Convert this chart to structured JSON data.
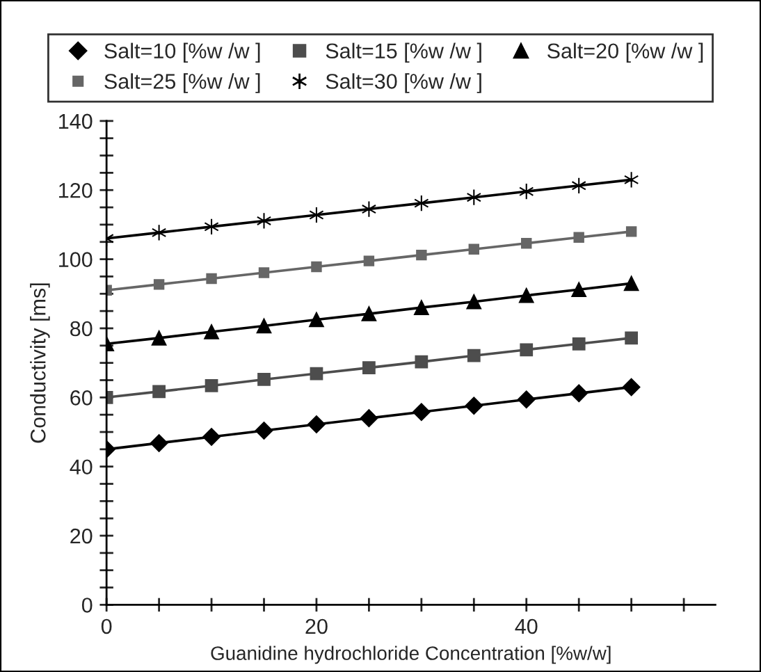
{
  "chart_data": {
    "type": "line",
    "xlabel": "Guanidine hydrochloride Concentration [%w/w]",
    "ylabel": "Conductivity [ms]",
    "x": [
      0,
      5,
      10,
      15,
      20,
      25,
      30,
      35,
      40,
      45,
      50
    ],
    "series": [
      {
        "name": "Salt=10 [%w /w ]",
        "color": "#000000",
        "marker": "diamond",
        "values": [
          45,
          46.8,
          48.6,
          50.4,
          52.2,
          54,
          55.8,
          57.6,
          59.4,
          61.2,
          63
        ]
      },
      {
        "name": "Salt=15 [%w /w ]",
        "color": "#4d4d4d",
        "marker": "square",
        "values": [
          60,
          61.7,
          63.4,
          65.2,
          66.9,
          68.6,
          70.3,
          72.1,
          73.8,
          75.5,
          77.2
        ]
      },
      {
        "name": "Salt=20 [%w /w ]",
        "color": "#000000",
        "marker": "triangle",
        "values": [
          75.5,
          77.2,
          79,
          80.7,
          82.5,
          84.2,
          86,
          87.7,
          89.5,
          91.2,
          93
        ]
      },
      {
        "name": "Salt=25 [%w /w ]",
        "color": "#666666",
        "marker": "square",
        "values": [
          91,
          92.7,
          94.4,
          96.1,
          97.8,
          99.5,
          101.2,
          102.9,
          104.6,
          106.3,
          108
        ]
      },
      {
        "name": "Salt=30 [%w /w ]",
        "color": "#000000",
        "marker": "cross",
        "values": [
          106,
          107.7,
          109.4,
          111.1,
          112.8,
          114.5,
          116.2,
          117.9,
          119.6,
          121.3,
          123
        ]
      }
    ],
    "xlim": [
      0,
      58
    ],
    "xticks": [
      0,
      {
        "value": 5,
        "label": null
      },
      {
        "value": 10,
        "label": null
      },
      {
        "value": 15,
        "label": null
      },
      20,
      {
        "value": 25,
        "label": null
      },
      {
        "value": 30,
        "label": null
      },
      {
        "value": 35,
        "label": null
      },
      40,
      {
        "value": 45,
        "label": null
      },
      {
        "value": 50,
        "label": null
      },
      {
        "value": 55,
        "label": null
      }
    ],
    "ylim": [
      0,
      140
    ],
    "yticks": [
      0,
      {
        "value": 5,
        "label": null
      },
      {
        "value": 10,
        "label": null
      },
      {
        "value": 15,
        "label": null
      },
      20,
      {
        "value": 25,
        "label": null
      },
      {
        "value": 30,
        "label": null
      },
      {
        "value": 35,
        "label": null
      },
      40,
      {
        "value": 45,
        "label": null
      },
      {
        "value": 50,
        "label": null
      },
      {
        "value": 55,
        "label": null
      },
      60,
      {
        "value": 65,
        "label": null
      },
      {
        "value": 70,
        "label": null
      },
      {
        "value": 75,
        "label": null
      },
      80,
      {
        "value": 85,
        "label": null
      },
      {
        "value": 90,
        "label": null
      },
      {
        "value": 95,
        "label": null
      },
      100,
      {
        "value": 105,
        "label": null
      },
      {
        "value": 110,
        "label": null
      },
      {
        "value": 115,
        "label": null
      },
      120,
      {
        "value": 125,
        "label": null
      },
      {
        "value": 130,
        "label": null
      },
      {
        "value": 135,
        "label": null
      },
      140
    ],
    "grid": false,
    "legend": "top",
    "line_style": "solid"
  }
}
